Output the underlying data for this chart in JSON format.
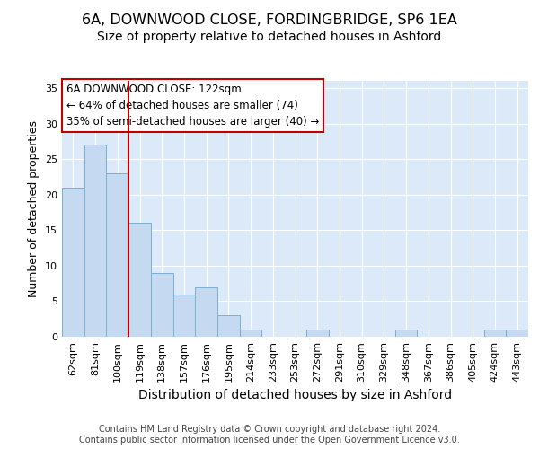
{
  "title1": "6A, DOWNWOOD CLOSE, FORDINGBRIDGE, SP6 1EA",
  "title2": "Size of property relative to detached houses in Ashford",
  "xlabel": "Distribution of detached houses by size in Ashford",
  "ylabel": "Number of detached properties",
  "categories": [
    "62sqm",
    "81sqm",
    "100sqm",
    "119sqm",
    "138sqm",
    "157sqm",
    "176sqm",
    "195sqm",
    "214sqm",
    "233sqm",
    "253sqm",
    "272sqm",
    "291sqm",
    "310sqm",
    "329sqm",
    "348sqm",
    "367sqm",
    "386sqm",
    "405sqm",
    "424sqm",
    "443sqm"
  ],
  "values": [
    21,
    27,
    23,
    16,
    9,
    6,
    7,
    3,
    1,
    0,
    0,
    1,
    0,
    0,
    0,
    1,
    0,
    0,
    0,
    1,
    1
  ],
  "bar_color": "#c5d9f0",
  "bar_edge_color": "#7bafd4",
  "bar_width": 1.0,
  "vline_x_index": 3,
  "vline_color": "#c00000",
  "annotation_line1": "6A DOWNWOOD CLOSE: 122sqm",
  "annotation_line2": "← 64% of detached houses are smaller (74)",
  "annotation_line3": "35% of semi-detached houses are larger (40) →",
  "annotation_box_edge_color": "#c00000",
  "annotation_box_face_color": "#ffffff",
  "ylim": [
    0,
    36
  ],
  "yticks": [
    0,
    5,
    10,
    15,
    20,
    25,
    30,
    35
  ],
  "footnote": "Contains HM Land Registry data © Crown copyright and database right 2024.\nContains public sector information licensed under the Open Government Licence v3.0.",
  "bg_color": "#dce9f8",
  "fig_bg_color": "#ffffff",
  "title1_fontsize": 11.5,
  "title2_fontsize": 10,
  "xlabel_fontsize": 10,
  "ylabel_fontsize": 9,
  "tick_fontsize": 8,
  "annotation_fontsize": 8.5,
  "footnote_fontsize": 7
}
